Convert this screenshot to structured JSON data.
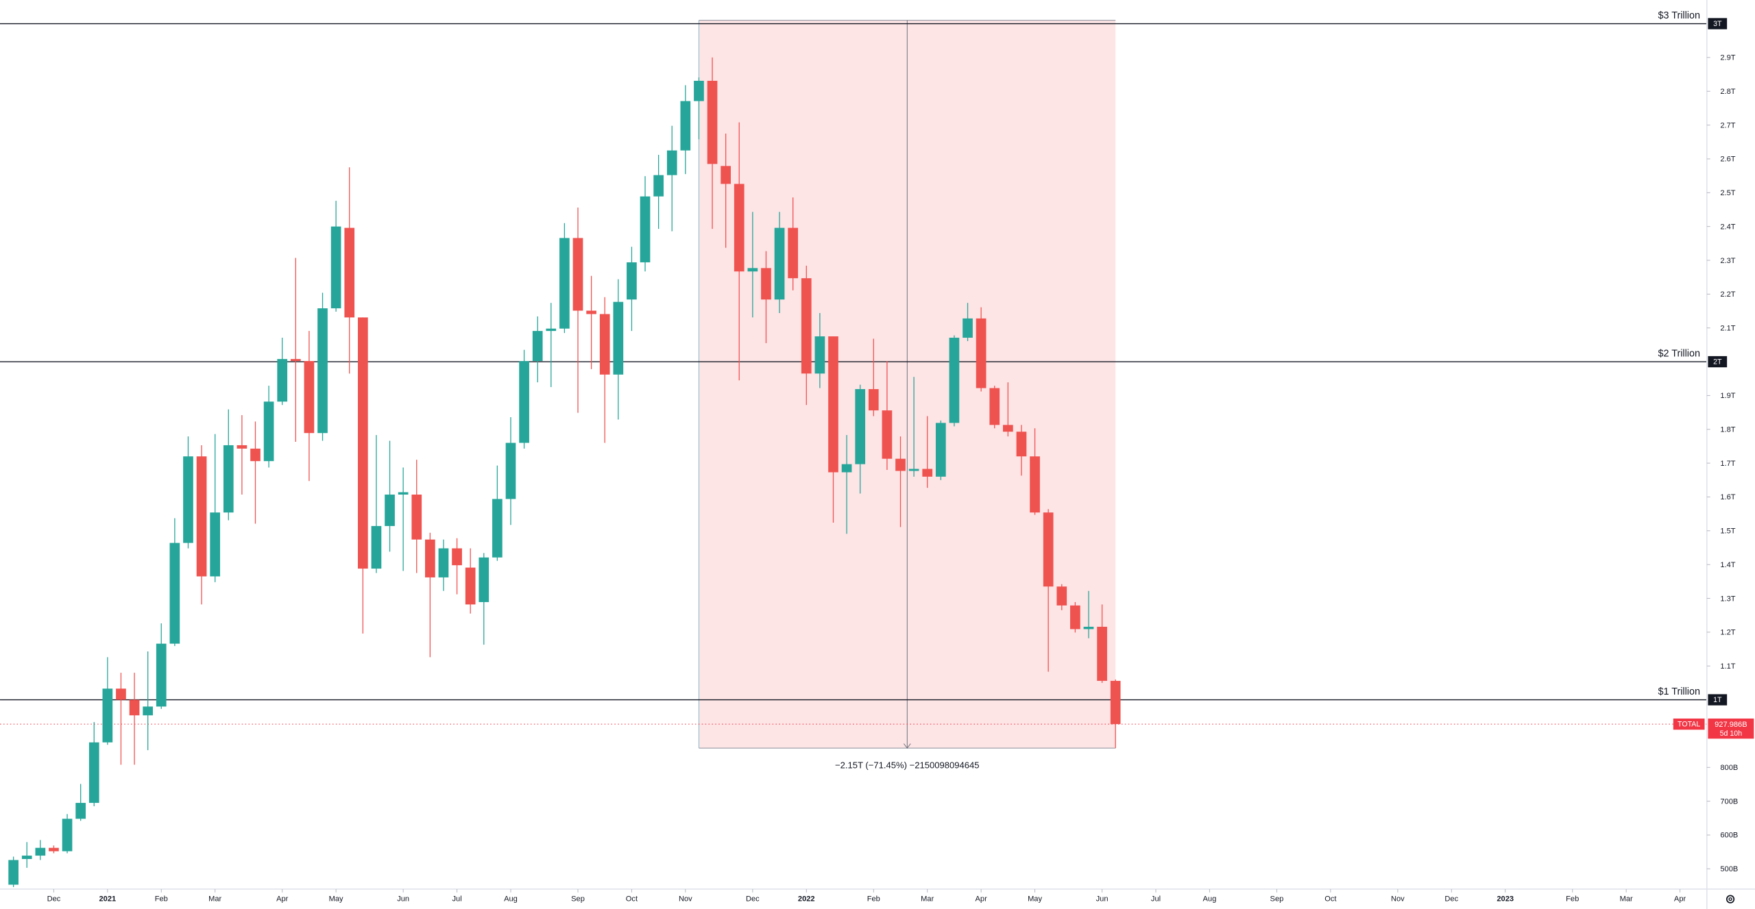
{
  "chart_data": {
    "type": "candlestick",
    "up_color": "#26a69a",
    "down_color": "#ef5350",
    "xlim": [
      -1,
      126
    ],
    "ylim": [
      440,
      3070
    ],
    "open": [
      453,
      529,
      539,
      562,
      552,
      648,
      695,
      874,
      1033,
      1000,
      954,
      980,
      1166,
      1464,
      1720,
      1365,
      1554,
      1753,
      1743,
      1706,
      1882,
      2008,
      2002,
      1789,
      2158,
      2396,
      2131,
      1388,
      1514,
      1607,
      1607,
      1474,
      1362,
      1448,
      1391,
      1289,
      1421,
      1594,
      1760,
      2002,
      2091,
      2098,
      2366,
      2151,
      2141,
      1962,
      2184,
      2294,
      2489,
      2552,
      2625,
      2771,
      2831,
      2579,
      2526,
      2267,
      2277,
      2184,
      2396,
      2247,
      1965,
      2075,
      1673,
      1697,
      1919,
      1856,
      1713,
      1677,
      1683,
      1660,
      1819,
      2071,
      2128,
      1922,
      1813,
      1793,
      1720,
      1554,
      1335,
      1279,
      1209,
      1216,
      1056
    ],
    "high": [
      536,
      579,
      585,
      569,
      662,
      751,
      934,
      1126,
      1080,
      1080,
      1143,
      1226,
      1537,
      1779,
      1753,
      1786,
      1859,
      1842,
      1823,
      1929,
      2071,
      2307,
      2091,
      2204,
      2476,
      2575,
      2131,
      1783,
      1766,
      1687,
      1710,
      1494,
      1474,
      1478,
      1448,
      1434,
      1693,
      1836,
      2035,
      2134,
      2174,
      2410,
      2456,
      2254,
      2191,
      2244,
      2340,
      2549,
      2612,
      2698,
      2818,
      2841,
      2900,
      2675,
      2708,
      2443,
      2327,
      2443,
      2486,
      2284,
      2144,
      2075,
      1783,
      1932,
      2068,
      2002,
      1779,
      1955,
      1839,
      1826,
      2078,
      2174,
      2161,
      1929,
      1939,
      1813,
      1803,
      1564,
      1342,
      1289,
      1322,
      1282,
      1060
    ],
    "low": [
      446,
      503,
      526,
      546,
      546,
      642,
      685,
      867,
      808,
      808,
      851,
      973,
      1159,
      1448,
      1282,
      1348,
      1531,
      1607,
      1521,
      1687,
      1872,
      1763,
      1647,
      1766,
      2148,
      1965,
      1196,
      1375,
      1438,
      1381,
      1375,
      1126,
      1322,
      1312,
      1255,
      1163,
      1411,
      1517,
      1743,
      1939,
      1925,
      2085,
      1849,
      1978,
      1760,
      1829,
      2091,
      2267,
      2393,
      2386,
      2555,
      2658,
      2393,
      2337,
      1945,
      2131,
      2055,
      2144,
      2211,
      1872,
      1922,
      1524,
      1491,
      1610,
      1839,
      1680,
      1511,
      1660,
      1627,
      1650,
      1809,
      2061,
      1912,
      1803,
      1779,
      1663,
      1547,
      1083,
      1265,
      1199,
      1182,
      1050,
      857
    ],
    "close": [
      526,
      539,
      562,
      552,
      648,
      695,
      874,
      1033,
      1000,
      954,
      980,
      1166,
      1464,
      1720,
      1365,
      1554,
      1753,
      1743,
      1706,
      1882,
      2008,
      2002,
      1789,
      2158,
      2400,
      2131,
      1388,
      1514,
      1607,
      1614,
      1474,
      1362,
      1448,
      1398,
      1282,
      1421,
      1594,
      1760,
      2002,
      2091,
      2098,
      2366,
      2151,
      2141,
      1962,
      2177,
      2294,
      2489,
      2552,
      2625,
      2771,
      2831,
      2585,
      2526,
      2267,
      2277,
      2184,
      2396,
      2247,
      1965,
      2075,
      1673,
      1697,
      1919,
      1856,
      1713,
      1677,
      1683,
      1660,
      1819,
      2071,
      2128,
      1922,
      1813,
      1793,
      1720,
      1554,
      1335,
      1279,
      1209,
      1216,
      1056,
      928
    ],
    "xticks": [
      {
        "value": 3,
        "label": "Dec"
      },
      {
        "value": 7,
        "label": "2021"
      },
      {
        "value": 11,
        "label": "Feb"
      },
      {
        "value": 15,
        "label": "Mar"
      },
      {
        "value": 20,
        "label": "Apr"
      },
      {
        "value": 24,
        "label": "May"
      },
      {
        "value": 29,
        "label": "Jun"
      },
      {
        "value": 33,
        "label": "Jul"
      },
      {
        "value": 37,
        "label": "Aug"
      },
      {
        "value": 42,
        "label": "Sep"
      },
      {
        "value": 46,
        "label": "Oct"
      },
      {
        "value": 50,
        "label": "Nov"
      },
      {
        "value": 55,
        "label": "Dec"
      },
      {
        "value": 59,
        "label": "2022"
      },
      {
        "value": 64,
        "label": "Feb"
      },
      {
        "value": 68,
        "label": "Mar"
      },
      {
        "value": 72,
        "label": "Apr"
      },
      {
        "value": 76,
        "label": "May"
      },
      {
        "value": 81,
        "label": "Jun"
      },
      {
        "value": 85,
        "label": "Jul"
      },
      {
        "value": 89,
        "label": "Aug"
      },
      {
        "value": 94,
        "label": "Sep"
      },
      {
        "value": 98,
        "label": "Oct"
      },
      {
        "value": 103,
        "label": "Nov"
      },
      {
        "value": 107,
        "label": "Dec"
      },
      {
        "value": 111,
        "label": "2023"
      },
      {
        "value": 116,
        "label": "Feb"
      },
      {
        "value": 120,
        "label": "Mar"
      },
      {
        "value": 124,
        "label": "Apr"
      }
    ],
    "yticks": [
      {
        "value": 500,
        "label": "500B"
      },
      {
        "value": 600,
        "label": "600B"
      },
      {
        "value": 700,
        "label": "700B"
      },
      {
        "value": 800,
        "label": "800B"
      },
      {
        "value": 1100,
        "label": "1.1T"
      },
      {
        "value": 1200,
        "label": "1.2T"
      },
      {
        "value": 1300,
        "label": "1.3T"
      },
      {
        "value": 1400,
        "label": "1.4T"
      },
      {
        "value": 1500,
        "label": "1.5T"
      },
      {
        "value": 1600,
        "label": "1.6T"
      },
      {
        "value": 1700,
        "label": "1.7T"
      },
      {
        "value": 1800,
        "label": "1.8T"
      },
      {
        "value": 1900,
        "label": "1.9T"
      },
      {
        "value": 2100,
        "label": "2.1T"
      },
      {
        "value": 2200,
        "label": "2.2T"
      },
      {
        "value": 2300,
        "label": "2.3T"
      },
      {
        "value": 2400,
        "label": "2.4T"
      },
      {
        "value": 2500,
        "label": "2.5T"
      },
      {
        "value": 2600,
        "label": "2.6T"
      },
      {
        "value": 2700,
        "label": "2.7T"
      },
      {
        "value": 2800,
        "label": "2.8T"
      },
      {
        "value": 2900,
        "label": "2.9T"
      }
    ],
    "levels": [
      {
        "value": 3000,
        "label": "$3 Trillion",
        "axis_label": "3T"
      },
      {
        "value": 2000,
        "label": "$2 Trillion",
        "axis_label": "2T"
      },
      {
        "value": 1000,
        "label": "$1 Trillion",
        "axis_label": "1T"
      }
    ],
    "price_line": {
      "name": "TOTAL",
      "value": 927.986,
      "value_label": "927.986B",
      "countdown": "5d 10h",
      "color": "#f23645"
    },
    "measure": {
      "start": 51,
      "end": 82,
      "high": 3010,
      "low": 857,
      "label": "−2.15T (−71.45%) −2150098094645",
      "color": "#fde4e5"
    }
  }
}
